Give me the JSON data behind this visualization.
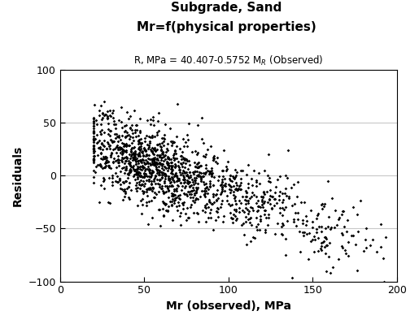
{
  "title_line1": "Subgrade, Sand",
  "title_line2": "Mr=f(physical properties)",
  "equation": "R, MPa = 40.407-0.5752 M$_R$ (Observed)",
  "xlabel": "Mr (observed), MPa",
  "ylabel": "Residuals",
  "xlim": [
    0,
    200
  ],
  "ylim": [
    -100,
    100
  ],
  "xticks": [
    0,
    50,
    100,
    150,
    200
  ],
  "yticks": [
    -100,
    -50,
    0,
    50,
    100
  ],
  "intercept": 40.407,
  "slope": -0.5752,
  "n_points": 1400,
  "noise_std": 18,
  "marker_color": "black",
  "marker_size": 3.5,
  "bg_color": "#ffffff",
  "grid_color": "#c8c8c8",
  "seed": 7
}
